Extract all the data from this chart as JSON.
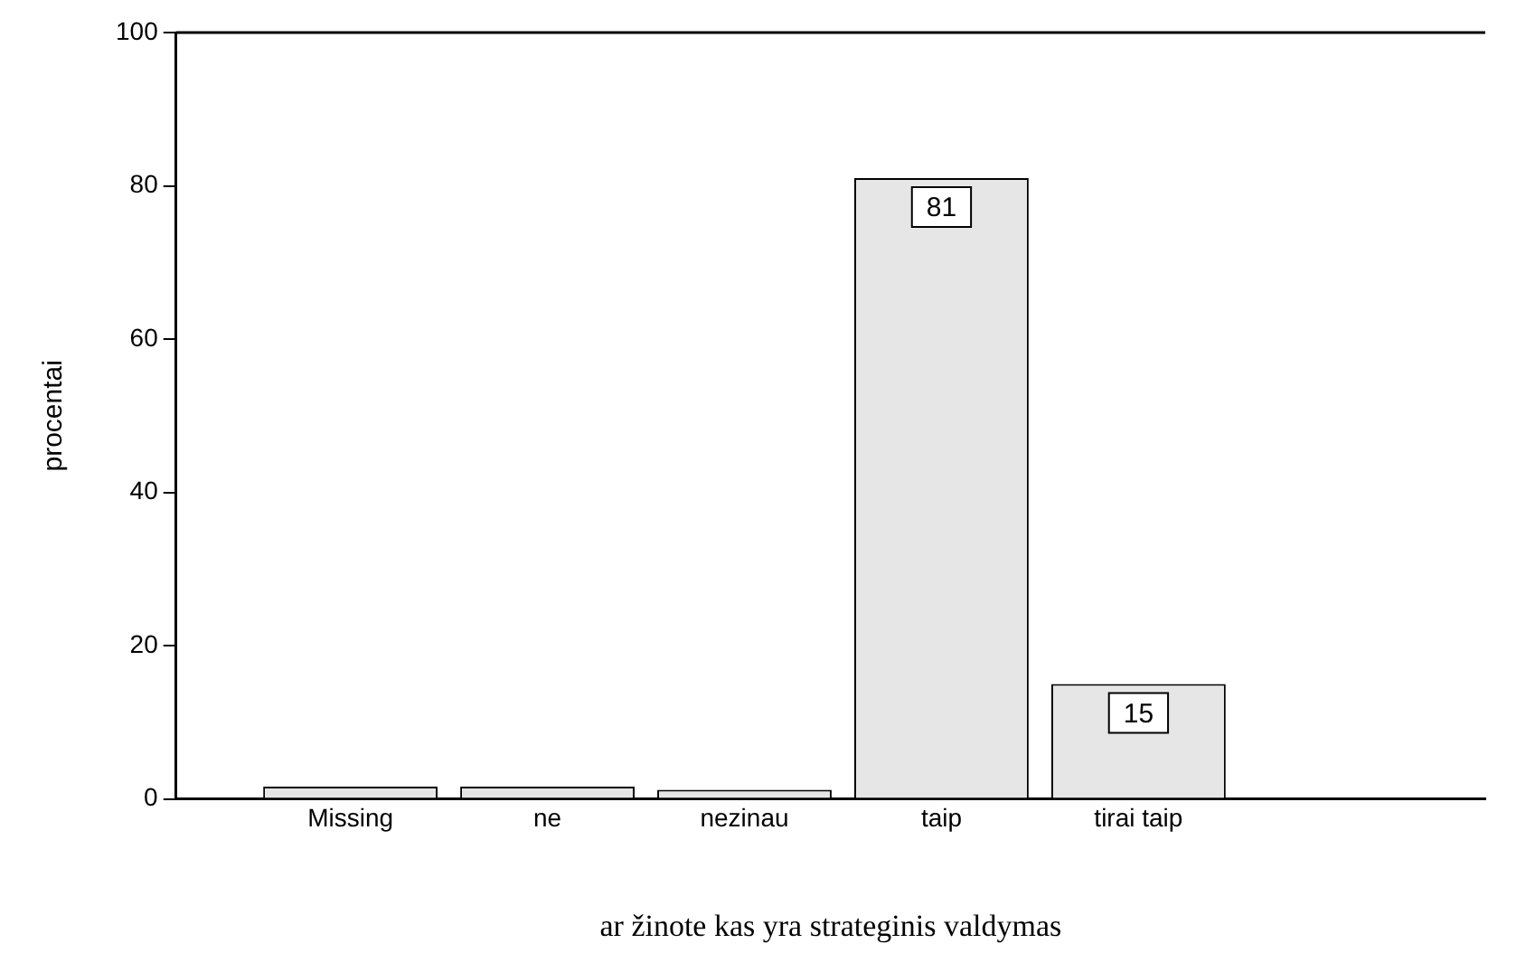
{
  "chart_data": {
    "type": "bar",
    "categories": [
      "Missing",
      "ne",
      "nezinau",
      "taip",
      "tirai taip"
    ],
    "values": [
      1.6,
      1.6,
      1.2,
      81,
      15
    ],
    "value_labels": [
      null,
      null,
      null,
      "81",
      "15"
    ],
    "color": "#e6e6e6",
    "xlabel": "ar žinote kas yra strateginis valdymas",
    "ylabel": "procentai",
    "ylim": [
      0,
      100
    ],
    "yticks": [
      0,
      20,
      40,
      60,
      80,
      100
    ],
    "grid": false,
    "legend": false
  }
}
